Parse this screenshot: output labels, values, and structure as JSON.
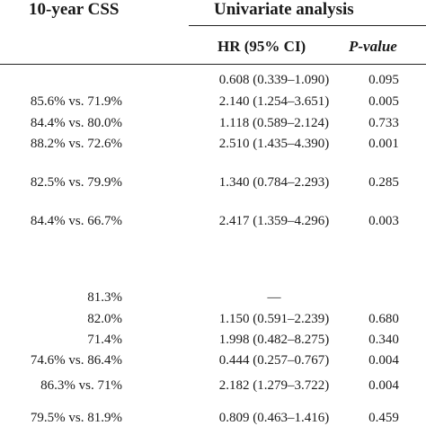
{
  "header": {
    "css_title": "10-year CSS",
    "analysis_title": "Univariate analysis",
    "hr_label": "HR (95% CI)",
    "p_label": "P-value"
  },
  "rows": [
    {
      "css": "",
      "hr": "0.608 (0.339–1.090)",
      "p": "0.095"
    },
    {
      "css": "85.6% vs. 71.9%",
      "hr": "2.140 (1.254–3.651)",
      "p": "0.005"
    },
    {
      "css": "84.4% vs. 80.0%",
      "hr": "1.118 (0.589–2.124)",
      "p": "0.733"
    },
    {
      "css": "88.2% vs. 72.6%",
      "hr": "2.510 (1.435–4.390)",
      "p": "0.001"
    },
    {
      "css": "82.5% vs. 79.9%",
      "hr": "1.340 (0.784–2.293)",
      "p": "0.285"
    },
    {
      "css": "84.4% vs. 66.7%",
      "hr": "2.417 (1.359–4.296)",
      "p": "0.003"
    },
    {
      "css": "81.3%",
      "hr": "—",
      "p": ""
    },
    {
      "css": "82.0%",
      "hr": "1.150 (0.591–2.239)",
      "p": "0.680"
    },
    {
      "css": "71.4%",
      "hr": "1.998 (0.482–8.275)",
      "p": "0.340"
    },
    {
      "css": "74.6% vs. 86.4%",
      "hr": "0.444 (0.257–0.767)",
      "p": "0.004"
    },
    {
      "css": "86.3% vs. 71%",
      "hr": "2.182 (1.279–3.722)",
      "p": "0.004"
    },
    {
      "css": "79.5% vs. 81.9%",
      "hr": "0.809 (0.463–1.416)",
      "p": "0.459"
    }
  ]
}
